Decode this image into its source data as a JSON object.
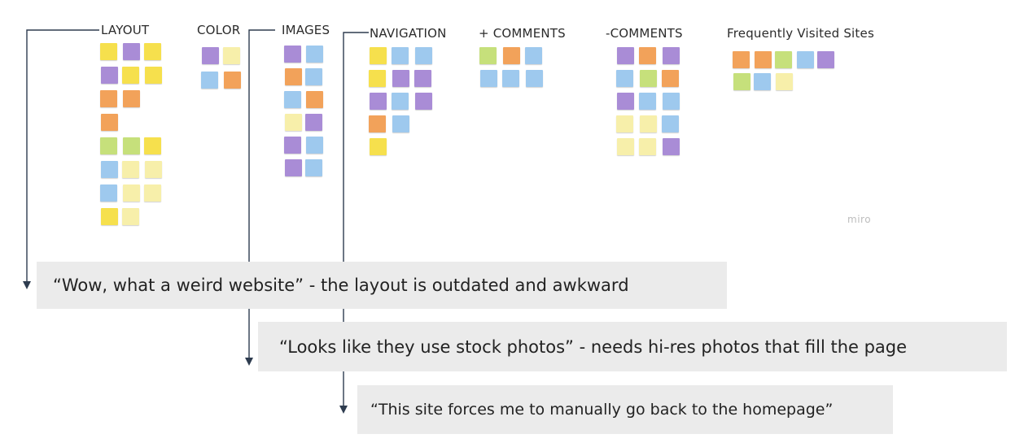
{
  "board": {
    "columns": [
      {
        "label": "LAYOUT"
      },
      {
        "label": "COLOR"
      },
      {
        "label": "IMAGES"
      },
      {
        "label": "NAVIGATION"
      },
      {
        "label": "+ COMMENTS"
      },
      {
        "label": "-COMMENTS"
      },
      {
        "label": "Frequently Visited Sites"
      }
    ],
    "watermark": "miro"
  },
  "quotes": [
    {
      "text": "“Wow, what a weird website” - the layout is outdated and awkward"
    },
    {
      "text": "“Looks like they use stock photos” - needs hi-res photos that fill the page"
    },
    {
      "text": "“This site forces me to manually go back to the homepage”"
    }
  ],
  "colors": {
    "yellow": "#f6e04d",
    "purple": "#a98cd6",
    "orange": "#f2a25a",
    "green": "#c6e07b",
    "blue": "#9ec9ee",
    "cream": "#f7efaa",
    "line": "#2e3c4f",
    "quote_bg": "#ebebeb"
  }
}
